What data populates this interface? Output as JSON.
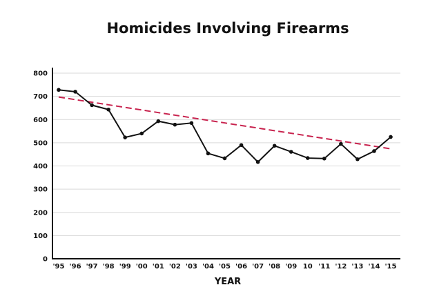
{
  "chart_data": {
    "type": "line",
    "title": "Homicides Involving Firearms",
    "xlabel": "YEAR",
    "ylabel": "",
    "ylim": [
      0,
      800
    ],
    "yticks": [
      0,
      100,
      200,
      300,
      400,
      500,
      600,
      700,
      800
    ],
    "grid": true,
    "categories": [
      "'95",
      "'96",
      "'97",
      "'98",
      "'99",
      "'00",
      "'01",
      "'02",
      "'03",
      "'04",
      "'05",
      "'06",
      "'07",
      "'08",
      "'09",
      "10",
      "'11",
      "'12",
      "'13",
      "'14",
      "'15"
    ],
    "series": [
      {
        "values": [
          728,
          720,
          662,
          643,
          523,
          540,
          593,
          578,
          585,
          454,
          433,
          490,
          417,
          487,
          461,
          434,
          432,
          495,
          429,
          464,
          525
        ],
        "color": "#111111"
      }
    ],
    "trendline": {
      "style": "dashed",
      "color": "#c8234e",
      "start_value": 697,
      "end_value": 474
    }
  }
}
